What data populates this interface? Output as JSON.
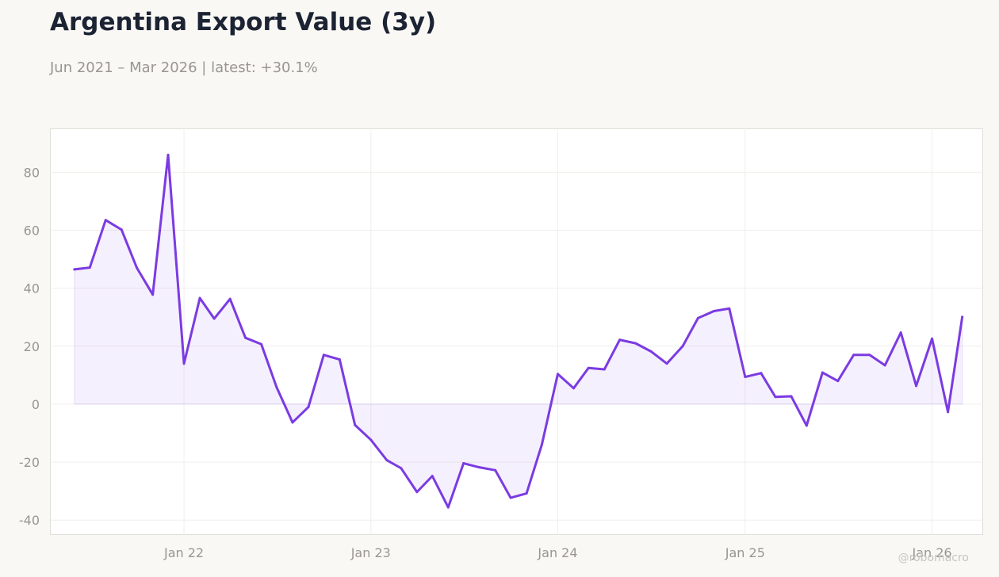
{
  "header": {
    "title": "Argentina Export Value (3y)",
    "subtitle": "Jun 2021 – Mar 2026 | latest: +30.1%"
  },
  "watermark": "@robomacro",
  "colors": {
    "line": "#7b3be2",
    "fill": "rgba(123, 59, 226, 0.08)",
    "background": "#f9f8f5",
    "plot_background": "#ffffff",
    "grid": "#f0efec",
    "axis_text": "#999690",
    "title": "#1c2333"
  },
  "chart_data": {
    "type": "area",
    "title": "Argentina Export Value (3y)",
    "subtitle": "Jun 2021 – Mar 2026 | latest: +30.1%",
    "xlabel": "",
    "ylabel": "",
    "ylim": [
      -45,
      95
    ],
    "yticks": [
      -40,
      -20,
      0,
      20,
      40,
      60,
      80
    ],
    "xlim": [
      "2021-04-15",
      "2026-04-10"
    ],
    "xticks": [
      {
        "date": "2022-01-01",
        "label": "Jan 22"
      },
      {
        "date": "2023-01-01",
        "label": "Jan 23"
      },
      {
        "date": "2024-01-01",
        "label": "Jan 24"
      },
      {
        "date": "2025-01-01",
        "label": "Jan 25"
      },
      {
        "date": "2026-01-01",
        "label": "Jan 26"
      }
    ],
    "grid": true,
    "baseline": 0,
    "series": [
      {
        "x": [
          "2021-06",
          "2021-07",
          "2021-08",
          "2021-09",
          "2021-10",
          "2021-11",
          "2021-12",
          "2022-01",
          "2022-02",
          "2022-03",
          "2022-04",
          "2022-05",
          "2022-06",
          "2022-07",
          "2022-08",
          "2022-09",
          "2022-10",
          "2022-11",
          "2022-12",
          "2023-01",
          "2023-02",
          "2023-03",
          "2023-04",
          "2023-05",
          "2023-06",
          "2023-07",
          "2023-08",
          "2023-09",
          "2023-10",
          "2023-11",
          "2023-12",
          "2024-01",
          "2024-02",
          "2024-03",
          "2024-04",
          "2024-05",
          "2024-06",
          "2024-07",
          "2024-08",
          "2024-09",
          "2024-10",
          "2024-11",
          "2024-12",
          "2025-01",
          "2025-02",
          "2025-03",
          "2025-04",
          "2025-05",
          "2025-06",
          "2025-07",
          "2025-08",
          "2025-09",
          "2025-10",
          "2025-11",
          "2025-12",
          "2026-01",
          "2026-02",
          "2026-03"
        ],
        "values": [
          46.5,
          47.1,
          63.5,
          60.2,
          47.0,
          37.8,
          86.0,
          14.0,
          36.6,
          29.5,
          36.3,
          22.9,
          20.7,
          5.8,
          -6.3,
          -1.0,
          17.0,
          15.4,
          -7.2,
          -12.3,
          -19.3,
          -22.1,
          -30.3,
          -24.8,
          -35.6,
          -20.4,
          -21.8,
          -22.8,
          -32.3,
          -30.8,
          -13.9,
          10.4,
          5.5,
          12.5,
          12.0,
          22.2,
          21.0,
          18.2,
          14.0,
          20.0,
          29.7,
          32.1,
          33.0,
          9.4,
          10.7,
          2.5,
          2.7,
          -7.4,
          10.9,
          8.0,
          17.0,
          17.0,
          13.4,
          24.7,
          6.3,
          22.6,
          -2.7,
          30.1
        ]
      }
    ]
  }
}
